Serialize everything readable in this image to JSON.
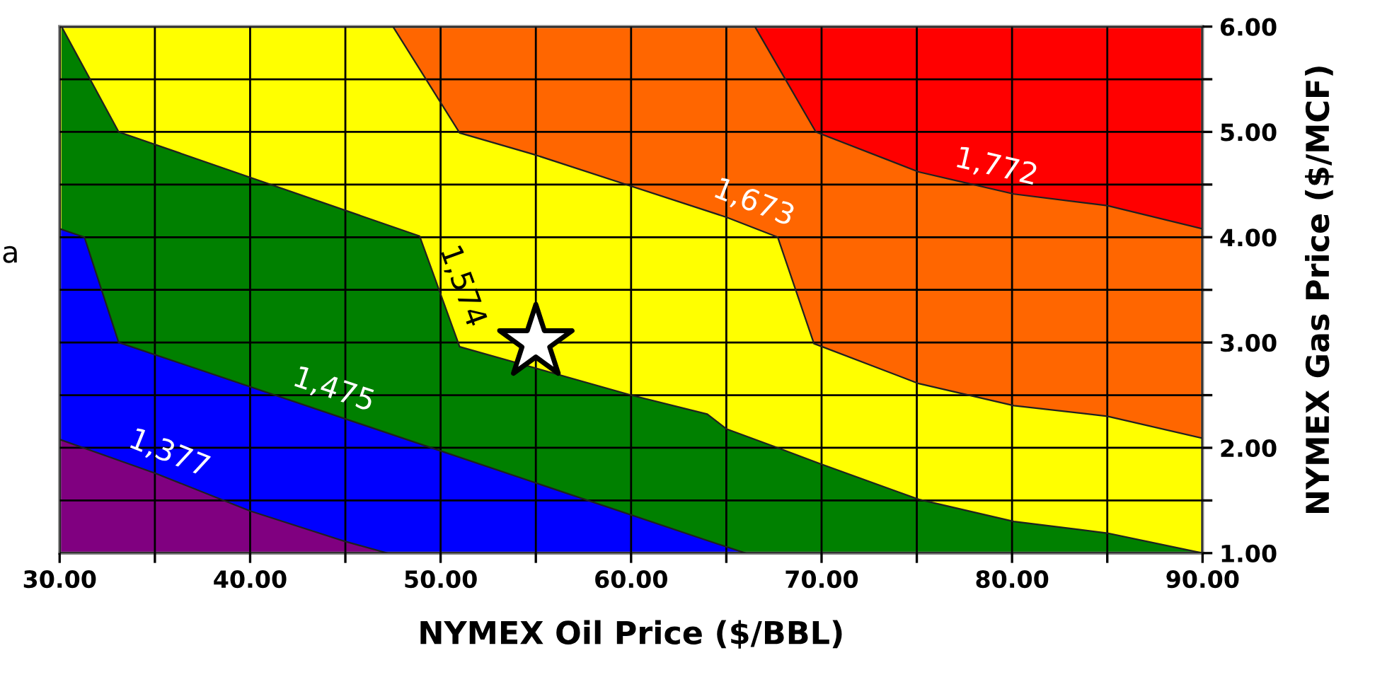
{
  "chart_data": {
    "type": "area",
    "xlabel": "NYMEX Oil Price ($/BBL)",
    "ylabel": "NYMEX Gas Price ($/MCF)",
    "xlim": [
      30,
      90
    ],
    "ylim": [
      1,
      6
    ],
    "xticks": [
      {
        "value": 30,
        "label": "30.00"
      },
      {
        "value": 35,
        "label": null
      },
      {
        "value": 40,
        "label": "40.00"
      },
      {
        "value": 45,
        "label": null
      },
      {
        "value": 50,
        "label": "50.00"
      },
      {
        "value": 55,
        "label": null
      },
      {
        "value": 60,
        "label": "60.00"
      },
      {
        "value": 65,
        "label": null
      },
      {
        "value": 70,
        "label": "70.00"
      },
      {
        "value": 75,
        "label": null
      },
      {
        "value": 80,
        "label": "80.00"
      },
      {
        "value": 85,
        "label": null
      },
      {
        "value": 90,
        "label": "90.00"
      }
    ],
    "yticks": [
      {
        "value": 1,
        "label": "1.00"
      },
      {
        "value": 1.5,
        "label": null
      },
      {
        "value": 2,
        "label": "2.00"
      },
      {
        "value": 2.5,
        "label": null
      },
      {
        "value": 3,
        "label": "3.00"
      },
      {
        "value": 3.5,
        "label": null
      },
      {
        "value": 4,
        "label": "4.00"
      },
      {
        "value": 4.5,
        "label": null
      },
      {
        "value": 5,
        "label": "5.00"
      },
      {
        "value": 5.5,
        "label": null
      },
      {
        "value": 6,
        "label": "6.00"
      }
    ],
    "grid": true,
    "series": [
      {
        "color": "#800080",
        "x": [
          30,
          35,
          40,
          45,
          47.2
        ],
        "values": [
          2.08,
          1.76,
          1.4,
          1.11,
          1.0
        ]
      },
      {
        "color": "#0000ff",
        "x": [
          30,
          31.3,
          33.1,
          50,
          64,
          66
        ],
        "values": [
          4.08,
          4.0,
          3.0,
          1.97,
          1.12,
          1.0
        ]
      },
      {
        "color": "#008000",
        "x": [
          30.1,
          33.1,
          48.9,
          51,
          60,
          64,
          65,
          67.7,
          69.9,
          75.1,
          80.1,
          85,
          90
        ],
        "values": [
          6.0,
          5.0,
          4.01,
          2.96,
          2.5,
          2.32,
          2.18,
          2.0,
          1.85,
          1.51,
          1.3,
          1.19,
          1.0
        ]
      },
      {
        "color": "#ffff00",
        "x": [
          30,
          47.5,
          51,
          55,
          65,
          67.7,
          69.6,
          75.1,
          80.1,
          85,
          90
        ],
        "values": [
          6.0,
          6.0,
          4.99,
          4.78,
          4.19,
          4.0,
          2.99,
          2.61,
          2.4,
          2.3,
          2.09
        ]
      },
      {
        "color": "#ff6600",
        "x": [
          47.5,
          66.5,
          69.7,
          75.1,
          80.1,
          85,
          90
        ],
        "values": [
          6.0,
          6.0,
          5.0,
          4.62,
          4.41,
          4.3,
          4.08
        ]
      },
      {
        "color": "#ff0000",
        "x": [
          66.5,
          90
        ],
        "values": [
          6,
          6
        ]
      },
      {
        "type": "scatter",
        "marker": "star",
        "color": "#ffffff",
        "x": [
          55
        ],
        "values": [
          3.0
        ]
      }
    ],
    "annotations": [
      {
        "text": "1,377",
        "x": 35.3,
        "y": 1.74
      },
      {
        "text": "1,475",
        "x": 44,
        "y": 2.34
      },
      {
        "text": "1,574",
        "x": 50,
        "y": 3.46
      },
      {
        "text": "1,673",
        "x": 66,
        "y": 4.12
      },
      {
        "text": "1,772",
        "x": 78.9,
        "y": 4.45
      },
      "a"
    ]
  }
}
